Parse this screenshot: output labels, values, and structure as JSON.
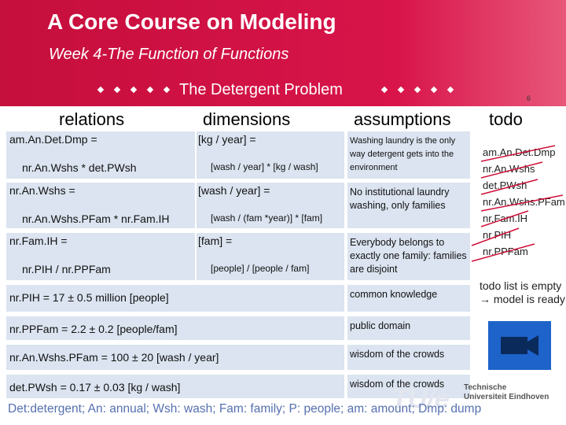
{
  "header": {
    "title": "A Core Course on Modeling",
    "subtitle": "Week 4-The Function of Functions",
    "section": "The Detergent Problem",
    "slide_number": "6"
  },
  "columns": [
    "relations",
    "dimensions",
    "assumptions",
    "todo"
  ],
  "rows": [
    {
      "relation": [
        "am.An.Det.Dmp =",
        "nr.An.Wshs * det.PWsh"
      ],
      "dimension": [
        "[kg / year] =",
        "[wash / year] * [kg / wash]"
      ],
      "assumption": "Washing laundry is the only way detergent gets into the environment"
    },
    {
      "relation": [
        "nr.An.Wshs =",
        "nr.An.Wshs.PFam * nr.Fam.IH"
      ],
      "dimension": [
        "[wash / year] =",
        "[wash / (fam *year)] * [fam]"
      ],
      "assumption": "No institutional laundry washing, only families"
    },
    {
      "relation": [
        "nr.Fam.IH =",
        "nr.PIH / nr.PPFam"
      ],
      "dimension": [
        "[fam] =",
        "[people] / [people / fam]"
      ],
      "assumption": "Everybody belongs to exactly one family: families are disjoint"
    },
    {
      "relation": "nr.PIH = 17 ± 0.5 million [people]",
      "assumption": "common knowledge"
    },
    {
      "relation": "nr.PPFam = 2.2 ± 0.2 [people/fam]",
      "assumption": "public domain"
    },
    {
      "relation": "nr.An.Wshs.PFam = 100 ± 20 [wash / year]",
      "assumption": "wisdom of the crowds"
    },
    {
      "relation": "det.PWsh = 0.17 ± 0.03 [kg / wash]",
      "assumption": "wisdom of the crowds"
    }
  ],
  "todo": [
    "am.An.Det.Dmp",
    "nr.An.Wshs",
    "det.PWsh",
    "nr.An.Wshs.PFam",
    "nr.Fam.IH",
    "nr.PIH",
    "nr.PPFam"
  ],
  "todo_note": "todo list is empty → model is ready",
  "logo": "Technische Universiteit Eindhoven",
  "footer": "Det:detergent; An: annual; Wsh: wash; Fam: family; P: people; am: amount; Dmp: dump"
}
